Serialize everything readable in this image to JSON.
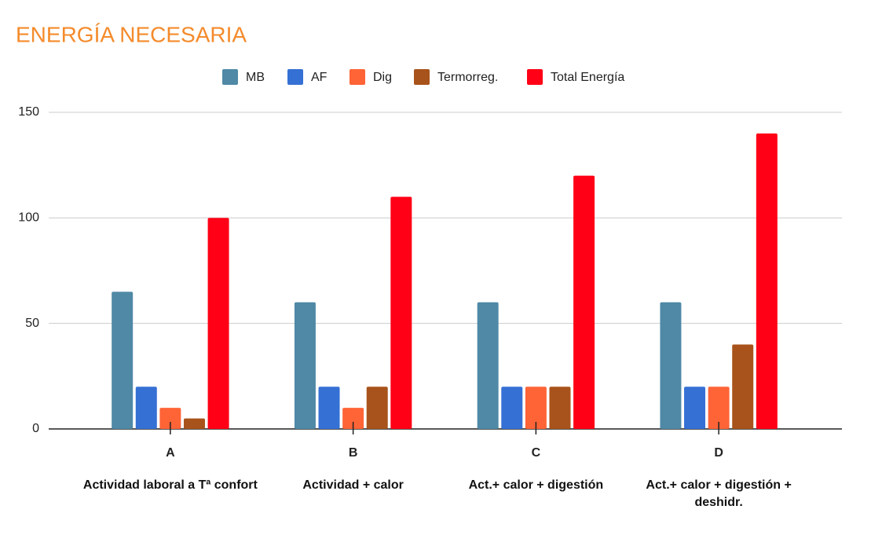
{
  "chart_data": {
    "type": "bar",
    "title": "ENERGÍA NECESARIA",
    "categories": [
      "A",
      "B",
      "C",
      "D"
    ],
    "category_labels": [
      "Actividad laboral a Tª confort",
      "Actividad + calor",
      "Act.+ calor + digestión",
      "Act.+ calor + digestión + deshidr."
    ],
    "series": [
      {
        "name": "MB",
        "color": "#4f89a6",
        "values": [
          65,
          60,
          60,
          60
        ]
      },
      {
        "name": "AF",
        "color": "#3570d4",
        "values": [
          20,
          20,
          20,
          20
        ]
      },
      {
        "name": "Dig",
        "color": "#ff6436",
        "values": [
          10,
          10,
          20,
          20
        ]
      },
      {
        "name": "Termorreg.",
        "color": "#a8531b",
        "values": [
          5,
          20,
          20,
          40
        ]
      },
      {
        "name": "Total Energía",
        "color": "#ff0016",
        "values": [
          100,
          110,
          120,
          140
        ]
      }
    ],
    "ylim": [
      0,
      150
    ],
    "yticks": [
      0,
      50,
      100,
      150
    ],
    "grid": true,
    "legend": "top"
  }
}
